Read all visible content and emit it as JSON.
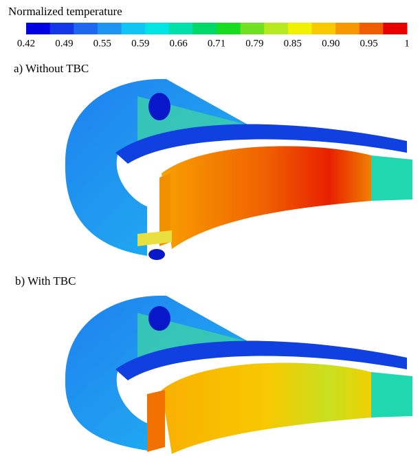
{
  "colorbar": {
    "title": "Normalized temperature",
    "labels": [
      "0.42",
      "0.49",
      "0.55",
      "0.59",
      "0.66",
      "0.71",
      "0.79",
      "0.85",
      "0.90",
      "0.95",
      "1"
    ],
    "colors": [
      "#0000e0",
      "#1438e8",
      "#1e68f0",
      "#1e94f0",
      "#10c4f4",
      "#00e4e4",
      "#00e0a8",
      "#00d868",
      "#18dc20",
      "#70e020",
      "#b8e820",
      "#f0f000",
      "#f8c800",
      "#f89800",
      "#f05c00",
      "#e80000"
    ]
  },
  "panels": [
    {
      "label": "a) Without TBC"
    },
    {
      "label": "b) With TBC"
    }
  ]
}
